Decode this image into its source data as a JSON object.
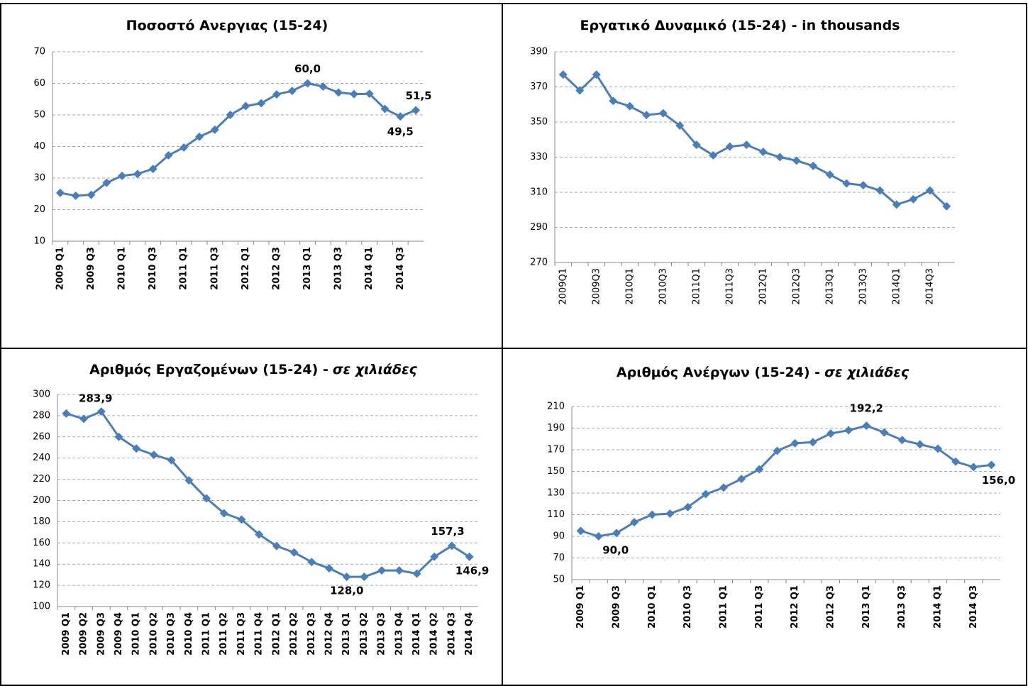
{
  "chart_data": [
    {
      "type": "line",
      "title": [
        "Ποσοστό Ανεργιας (15-24)"
      ],
      "categories": [
        "2009 Q1",
        null,
        "2009 Q3",
        null,
        "2010 Q1",
        null,
        "2010 Q3",
        null,
        "2011 Q1",
        null,
        "2011 Q3",
        null,
        "2012 Q1",
        null,
        "2012 Q3",
        null,
        "2013 Q1",
        null,
        "2013 Q3",
        null,
        "2014 Q1",
        null,
        "2014 Q3",
        null
      ],
      "values": [
        25.3,
        24.4,
        24.7,
        28.5,
        30.7,
        31.3,
        32.9,
        37.2,
        39.7,
        43.1,
        45.3,
        50.0,
        52.8,
        53.7,
        56.5,
        57.6,
        60.0,
        59.0,
        57.1,
        56.6,
        56.7,
        51.9,
        49.5,
        51.5
      ],
      "value_labels": [
        null,
        null,
        null,
        null,
        null,
        null,
        null,
        null,
        null,
        null,
        null,
        null,
        null,
        null,
        null,
        null,
        "60,0",
        null,
        null,
        null,
        null,
        null,
        "49,5",
        "51,5"
      ],
      "color": "#4a7ebb",
      "ylim": [
        10,
        70
      ],
      "yticks": [
        10,
        20,
        30,
        40,
        50,
        60,
        70
      ],
      "grid": true
    },
    {
      "type": "line",
      "title": [
        "Εργατικό Δυναμικό (15-24) - in thousands"
      ],
      "categories": [
        "2009Q1",
        null,
        "2009Q3",
        null,
        "2010Q1",
        null,
        "2010Q3",
        null,
        "2011Q1",
        null,
        "2011Q3",
        null,
        "2012Q1",
        null,
        "2012Q3",
        null,
        "2013Q1",
        null,
        "2013Q3",
        null,
        "2014Q1",
        null,
        "2014Q3",
        null
      ],
      "values": [
        377,
        368,
        377,
        362,
        359,
        354,
        355,
        348,
        337,
        331,
        336,
        337,
        333,
        330,
        328,
        325,
        320,
        315,
        314,
        311,
        303,
        306,
        311,
        302
      ],
      "color": "#4a7ebb",
      "ylim": [
        270,
        390
      ],
      "yticks": [
        270,
        290,
        310,
        330,
        350,
        370,
        390
      ],
      "grid": true
    },
    {
      "type": "line",
      "title": [
        "Αριθμός Εργαζομένων (15-24) -",
        "σε χιλιάδες"
      ],
      "categories": [
        "2009 Q1",
        "2009 Q2",
        "2009 Q3",
        "2009 Q4",
        "2010 Q1",
        "2010 Q2",
        "2010 Q3",
        "2010 Q4",
        "2011 Q1",
        "2011 Q2",
        "2011 Q3",
        "2011 Q4",
        "2012 Q1",
        "2012 Q2",
        "2012 Q3",
        "2012 Q4",
        "2013 Q1",
        "2013 Q2",
        "2013 Q3",
        "2013 Q4",
        "2014 Q1",
        "2014 Q2",
        "2014 Q3",
        "2014 Q4"
      ],
      "values": [
        282,
        277,
        283.9,
        260,
        249,
        243,
        238,
        219,
        202,
        188,
        182,
        168,
        157,
        151,
        142,
        136,
        128.0,
        128,
        134,
        134,
        131,
        147,
        157.3,
        146.9
      ],
      "value_labels": [
        null,
        null,
        "283,9",
        null,
        null,
        null,
        null,
        null,
        null,
        null,
        null,
        null,
        null,
        null,
        null,
        null,
        "128,0",
        null,
        null,
        null,
        null,
        null,
        "157,3",
        "146,9"
      ],
      "color": "#4a7ebb",
      "ylim": [
        100,
        300
      ],
      "yticks": [
        100,
        120,
        140,
        160,
        180,
        200,
        220,
        240,
        260,
        280,
        300
      ],
      "grid": true
    },
    {
      "type": "line",
      "title": [
        "Αριθμός Ανέργων (15-24) -",
        "σε χιλιάδες"
      ],
      "categories": [
        "2009 Q1",
        null,
        "2009 Q3",
        null,
        "2010 Q1",
        null,
        "2010 Q3",
        null,
        "2011 Q1",
        null,
        "2011 Q3",
        null,
        "2012 Q1",
        null,
        "2012 Q3",
        null,
        "2013 Q1",
        null,
        "2013 Q3",
        null,
        "2014 Q1",
        null,
        "2014 Q3",
        null
      ],
      "values": [
        95,
        90.0,
        93,
        103,
        110,
        111,
        117,
        129,
        135,
        143,
        152,
        169,
        176,
        177,
        185,
        188,
        192.2,
        186,
        179,
        175,
        171,
        159,
        154,
        156.0
      ],
      "value_labels": [
        null,
        "90,0",
        null,
        null,
        null,
        null,
        null,
        null,
        null,
        null,
        null,
        null,
        null,
        null,
        null,
        null,
        "192,2",
        null,
        null,
        null,
        null,
        null,
        null,
        "156,0"
      ],
      "color": "#4a7ebb",
      "ylim": [
        50,
        210
      ],
      "yticks": [
        50,
        70,
        90,
        110,
        130,
        150,
        170,
        190,
        210
      ],
      "grid": true
    }
  ]
}
